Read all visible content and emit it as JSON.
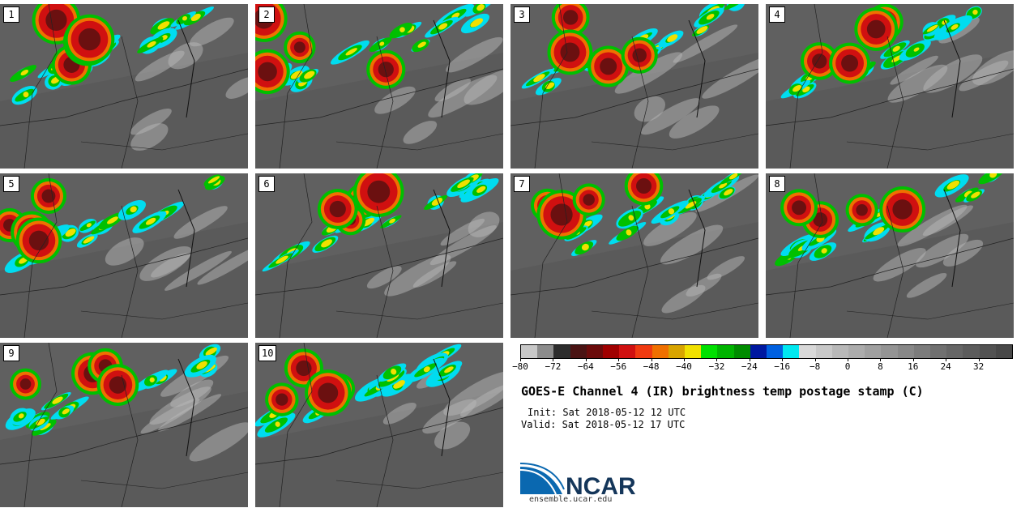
{
  "panels": [
    {
      "label": "1"
    },
    {
      "label": "2"
    },
    {
      "label": "3"
    },
    {
      "label": "4"
    },
    {
      "label": "5"
    },
    {
      "label": "6"
    },
    {
      "label": "7"
    },
    {
      "label": "8"
    },
    {
      "label": "9"
    },
    {
      "label": "10"
    }
  ],
  "colorbar": {
    "colors": [
      "#c8c8c8",
      "#8c8c8c",
      "#2d2d2d",
      "#4a1313",
      "#6b0b0b",
      "#a00000",
      "#d01010",
      "#f03a10",
      "#f07000",
      "#d8a400",
      "#f0e000",
      "#00e000",
      "#00b400",
      "#008c00",
      "#0018a0",
      "#0060e0",
      "#00e8f0",
      "#d8d8d8",
      "#c8c8c8",
      "#b8b8b8",
      "#acacac",
      "#a0a0a0",
      "#949494",
      "#888888",
      "#7c7c7c",
      "#707070",
      "#666666",
      "#5c5c5c",
      "#525252",
      "#484848"
    ],
    "ticks": [
      "−80",
      "−72",
      "−64",
      "−56",
      "−48",
      "−40",
      "−32",
      "−24",
      "−16",
      "−8",
      "0",
      "8",
      "16",
      "24",
      "32"
    ]
  },
  "title": "GOES-E Channel 4 (IR) brightness temp postage stamp (C)",
  "init": "Init: Sat 2018-05-12 12 UTC",
  "valid": "Valid: Sat 2018-05-12 17 UTC",
  "logo_text": "NCAR",
  "url": "ensemble.ucar.edu"
}
